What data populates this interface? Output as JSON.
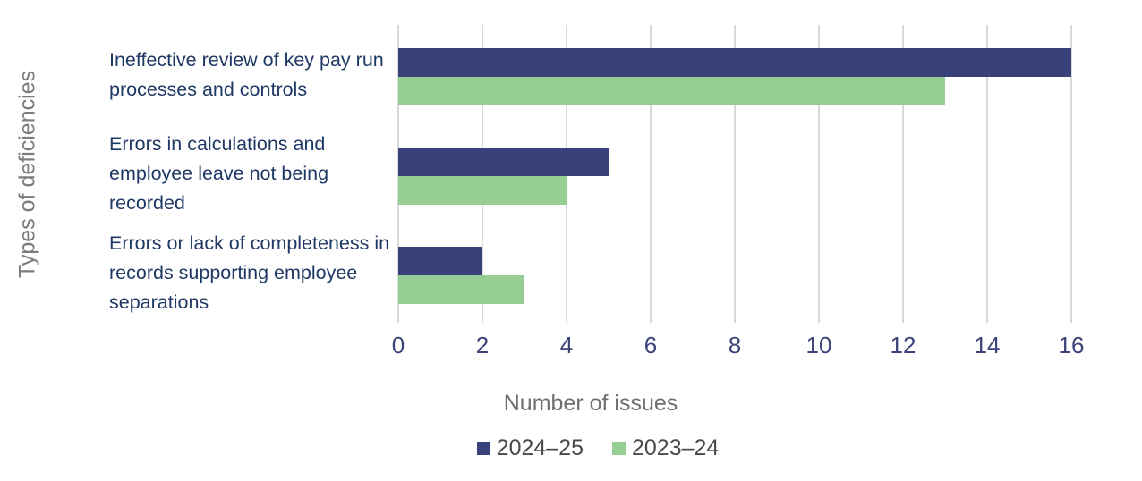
{
  "chart_data": {
    "type": "bar",
    "orientation": "horizontal",
    "title": "",
    "xlabel": "Number of issues",
    "ylabel": "Types of deficiencies",
    "categories": [
      "Ineffective review of key pay run processes and controls",
      "Errors in calculations and employee leave not being recorded",
      "Errors or lack of completeness in records supporting employee separations"
    ],
    "series": [
      {
        "name": "2024–25",
        "color": "#39417b",
        "values": [
          16,
          5,
          2
        ]
      },
      {
        "name": "2023–24",
        "color": "#97ce94",
        "values": [
          13,
          4,
          3
        ]
      }
    ],
    "xlim": [
      0,
      16
    ],
    "xticks": [
      0,
      2,
      4,
      6,
      8,
      10,
      12,
      14,
      16
    ],
    "grid": true,
    "legend_position": "bottom"
  },
  "colors": {
    "background": "#ffffff",
    "gridline": "#d9d9d9",
    "category_text": "#1f3864",
    "tick_text": "#3b4379",
    "axis_title_text": "#6f6f6f",
    "legend_text": "#4a4a4a"
  }
}
